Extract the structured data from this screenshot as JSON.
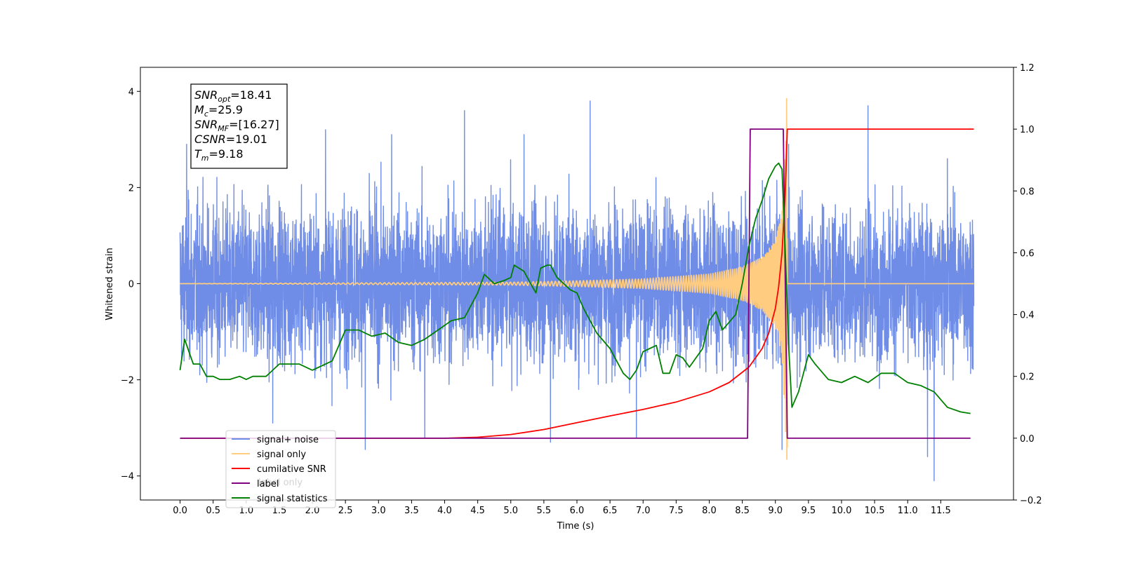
{
  "chart_data": {
    "type": "line",
    "xlabel": "Time (s)",
    "ylabel_left": "Whitened strain",
    "ylabel_right": "",
    "xlim": [
      -0.6,
      12.6
    ],
    "ylim_left": [
      -4.5,
      4.5
    ],
    "ylim_right": [
      -0.2,
      1.2
    ],
    "x_ticks": [
      0.0,
      0.5,
      1.0,
      1.5,
      2.0,
      2.5,
      3.0,
      3.5,
      4.0,
      4.5,
      5.0,
      5.5,
      6.0,
      6.5,
      7.0,
      7.5,
      8.0,
      8.5,
      9.0,
      9.5,
      10.0,
      10.5,
      11.0,
      11.5
    ],
    "x_tick_labels": [
      "0.0",
      "0.5",
      "1.0",
      "1.5",
      "2.0",
      "2.5",
      "3.0",
      "3.5",
      "4.0",
      "4.5",
      "5.0",
      "5.5",
      "6.0",
      "6.5",
      "7.0",
      "7.5",
      "8.0",
      "8.5",
      "9.0",
      "9.5",
      "10.0",
      "10.5",
      "11.0",
      "11.5"
    ],
    "y_left_ticks": [
      -4,
      -2,
      0,
      2,
      4
    ],
    "y_left_tick_labels": [
      "−4",
      "−2",
      "0",
      "2",
      "4"
    ],
    "y_right_ticks": [
      -0.2,
      0.0,
      0.2,
      0.4,
      0.6,
      0.8,
      1.0,
      1.2
    ],
    "y_right_tick_labels": [
      "−0.2",
      "0.0",
      "0.2",
      "0.4",
      "0.6",
      "0.8",
      "1.0",
      "1.2"
    ],
    "legend_position": "bottom-left",
    "legend": [
      {
        "label": "signal+ noise",
        "color": "#6f8ce6"
      },
      {
        "label": "signal only",
        "color": "#ffcc80"
      },
      {
        "label": "cumilative SNR",
        "color": "#ff0000"
      },
      {
        "label": "label",
        "color": "#800080"
      },
      {
        "label": "signal statistics",
        "color": "#008000"
      }
    ],
    "hidden_legend_entries": [
      "label only"
    ],
    "info_box": [
      {
        "base": "SNR",
        "sub": "opt",
        "value": "=18.41"
      },
      {
        "base": "M",
        "sub": "c",
        "value": "=25.9"
      },
      {
        "base": "SNR",
        "sub": "MF",
        "value": "=[16.27]"
      },
      {
        "base": "CSNR",
        "sub": "",
        "value": "=19.01"
      },
      {
        "base": "T",
        "sub": "m",
        "value": "=9.18"
      }
    ],
    "series": [
      {
        "name": "signal+ noise",
        "axis": "left",
        "color": "#6f8ce6",
        "kind": "noise",
        "x_range": [
          0.0,
          12.0
        ],
        "typical_amplitude": [
          -2.0,
          2.0
        ],
        "peaks": [
          [
            0.1,
            2.9
          ],
          [
            1.4,
            2.6
          ],
          [
            2.2,
            3.2
          ],
          [
            3.2,
            3.1
          ],
          [
            4.3,
            3.6
          ],
          [
            5.2,
            3.1
          ],
          [
            6.2,
            3.8
          ],
          [
            9.2,
            2.9
          ],
          [
            10.4,
            3.7
          ],
          [
            11.6,
            2.6
          ]
        ],
        "troughs": [
          [
            1.4,
            -2.9
          ],
          [
            2.8,
            -3.45
          ],
          [
            3.7,
            -3.2
          ],
          [
            5.6,
            -3.3
          ],
          [
            6.9,
            -3.2
          ],
          [
            9.1,
            -3.45
          ],
          [
            11.3,
            -3.6
          ],
          [
            11.4,
            -4.1
          ]
        ]
      },
      {
        "name": "signal only",
        "axis": "left",
        "color": "#ffcc80",
        "kind": "chirp",
        "x_range": [
          0.0,
          12.0
        ],
        "merger_time": 9.18,
        "peak_max": 3.85,
        "peak_min": -3.4,
        "envelope": [
          [
            0.0,
            0.0
          ],
          [
            5.0,
            0.03
          ],
          [
            6.0,
            0.06
          ],
          [
            7.0,
            0.1
          ],
          [
            8.0,
            0.2
          ],
          [
            8.5,
            0.35
          ],
          [
            8.8,
            0.55
          ],
          [
            9.0,
            0.9
          ],
          [
            9.1,
            1.5
          ],
          [
            9.18,
            3.85
          ],
          [
            9.2,
            0.0
          ],
          [
            12.0,
            0.0
          ]
        ]
      },
      {
        "name": "cumilative SNR",
        "axis": "right",
        "color": "#ff0000",
        "x": [
          0.0,
          4.0,
          4.5,
          5.0,
          5.5,
          6.0,
          6.5,
          7.0,
          7.5,
          8.0,
          8.3,
          8.6,
          8.8,
          8.9,
          9.0,
          9.05,
          9.1,
          9.15,
          9.18,
          9.2,
          12.0
        ],
        "values": [
          0.0,
          0.0,
          0.003,
          0.012,
          0.028,
          0.05,
          0.072,
          0.093,
          0.117,
          0.15,
          0.18,
          0.23,
          0.29,
          0.34,
          0.42,
          0.49,
          0.6,
          0.8,
          1.0,
          1.0,
          1.0
        ]
      },
      {
        "name": "label",
        "axis": "right",
        "color": "#800080",
        "x": [
          0.0,
          8.58,
          8.62,
          9.12,
          9.18,
          11.95
        ],
        "values": [
          0.0,
          0.0,
          1.0,
          1.0,
          0.0,
          0.0
        ]
      },
      {
        "name": "signal statistics",
        "axis": "right",
        "color": "#008000",
        "x": [
          0.0,
          0.07,
          0.15,
          0.2,
          0.3,
          0.4,
          0.5,
          0.6,
          0.75,
          0.9,
          1.0,
          1.1,
          1.3,
          1.5,
          1.6,
          1.8,
          2.0,
          2.1,
          2.3,
          2.5,
          2.7,
          2.9,
          3.1,
          3.3,
          3.5,
          3.7,
          3.9,
          4.1,
          4.3,
          4.5,
          4.6,
          4.75,
          4.9,
          5.0,
          5.05,
          5.2,
          5.3,
          5.38,
          5.45,
          5.55,
          5.6,
          5.7,
          5.8,
          5.9,
          6.0,
          6.1,
          6.3,
          6.5,
          6.7,
          6.8,
          6.9,
          7.0,
          7.1,
          7.2,
          7.3,
          7.4,
          7.5,
          7.6,
          7.7,
          7.9,
          8.0,
          8.1,
          8.2,
          8.4,
          8.5,
          8.6,
          8.7,
          8.8,
          8.9,
          9.0,
          9.05,
          9.1,
          9.15,
          9.2,
          9.25,
          9.35,
          9.5,
          9.6,
          9.8,
          10.0,
          10.2,
          10.4,
          10.6,
          10.8,
          11.0,
          11.2,
          11.4,
          11.6,
          11.8,
          11.95
        ],
        "values": [
          0.22,
          0.32,
          0.27,
          0.24,
          0.24,
          0.2,
          0.2,
          0.19,
          0.19,
          0.2,
          0.19,
          0.2,
          0.2,
          0.24,
          0.24,
          0.24,
          0.22,
          0.23,
          0.25,
          0.35,
          0.35,
          0.33,
          0.34,
          0.31,
          0.3,
          0.32,
          0.35,
          0.38,
          0.39,
          0.47,
          0.53,
          0.5,
          0.51,
          0.52,
          0.56,
          0.54,
          0.5,
          0.47,
          0.55,
          0.56,
          0.56,
          0.52,
          0.5,
          0.48,
          0.47,
          0.42,
          0.34,
          0.29,
          0.21,
          0.19,
          0.22,
          0.28,
          0.29,
          0.3,
          0.21,
          0.21,
          0.27,
          0.26,
          0.23,
          0.29,
          0.38,
          0.41,
          0.35,
          0.4,
          0.5,
          0.62,
          0.71,
          0.77,
          0.84,
          0.88,
          0.89,
          0.87,
          0.6,
          0.3,
          0.1,
          0.15,
          0.27,
          0.24,
          0.19,
          0.18,
          0.2,
          0.18,
          0.21,
          0.21,
          0.18,
          0.17,
          0.15,
          0.1,
          0.085,
          0.08
        ]
      }
    ]
  }
}
